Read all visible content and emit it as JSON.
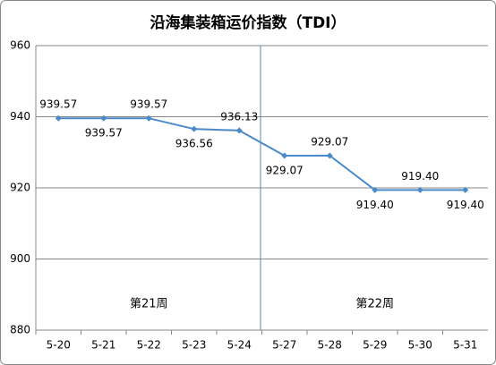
{
  "chart_data": {
    "type": "line",
    "title": "沿海集装箱运价指数（TDI）",
    "categories": [
      "5-20",
      "5-21",
      "5-22",
      "5-23",
      "5-24",
      "5-27",
      "5-28",
      "5-29",
      "5-30",
      "5-31"
    ],
    "values": [
      939.57,
      939.57,
      939.57,
      936.56,
      936.13,
      929.07,
      929.07,
      919.4,
      919.4,
      919.4
    ],
    "value_labels": [
      "939.57",
      "939.57",
      "939.57",
      "936.56",
      "936.13",
      "929.07",
      "929.07",
      "919.40",
      "919.40",
      "919.40"
    ],
    "color": "#4a8ac9",
    "ylim": [
      880,
      960
    ],
    "yticks": [
      880,
      900,
      920,
      940,
      960
    ],
    "grid": true,
    "annotations": [
      "第21周",
      "第22周"
    ]
  }
}
